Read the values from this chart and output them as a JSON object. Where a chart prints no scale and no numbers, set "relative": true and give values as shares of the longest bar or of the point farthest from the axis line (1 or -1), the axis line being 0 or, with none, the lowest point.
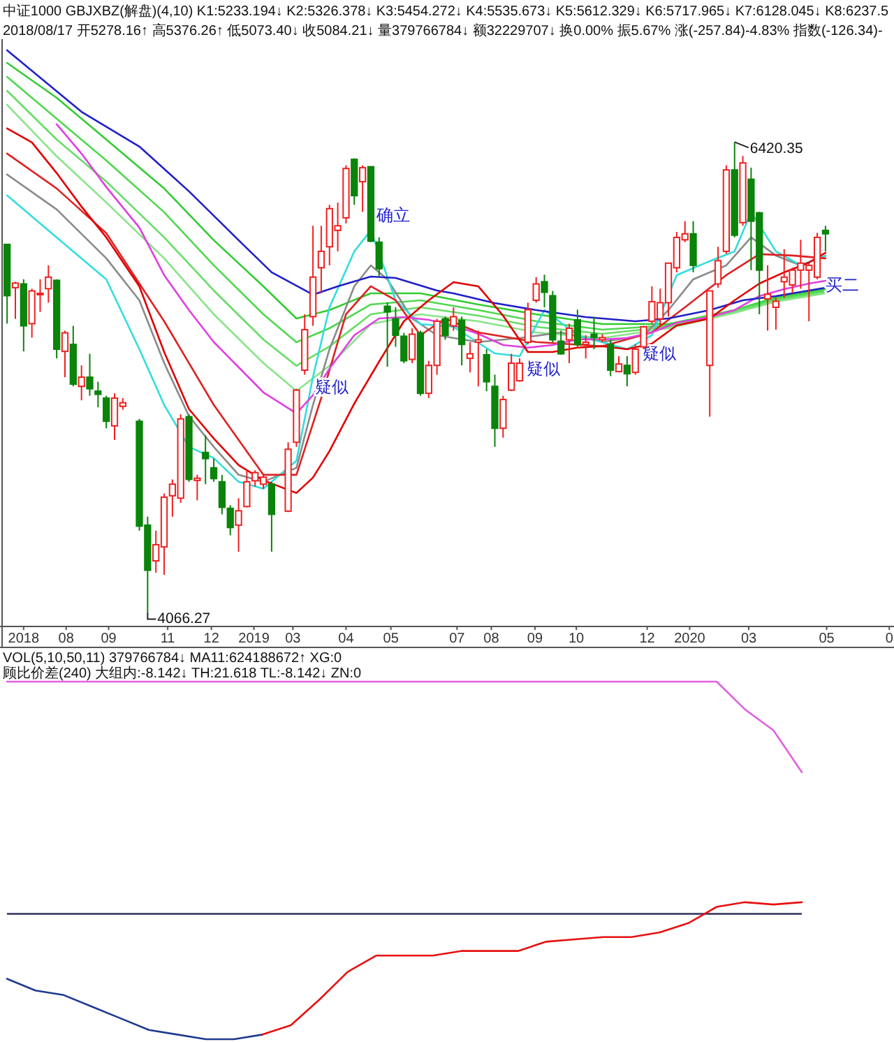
{
  "chart_data": [
    {
      "type": "candlestick",
      "annotations": [
        "中证1000 GBJXBZ(解盘)(4,10) K1:5233.194↓ K2:5326.378↓ K3:5454.272↓ K4:5535.673↓ K5:5612.329↓ K6:5717.965↓ K7:6128.045↓ K8:6237.5",
        "2018/08/17 开5278.16↑ 高5376.26↑ 低5073.40↓ 收5084.21↓ 量379766784↓ 额32229707↓ 换0.00% 振5.67% 涨(-257.84)-4.83% 指数(-126.34)-",
        {
          "text": "6420.35",
          "x": "2020-02-28",
          "y": 6420.35
        },
        {
          "text": "4066.27",
          "x": "2018-10-19",
          "y": 4066.27
        },
        {
          "text": "疑似",
          "x": "2019-03-10",
          "y": 5201
        },
        {
          "text": "疑似",
          "x": "2019-09-05",
          "y": 5293
        },
        {
          "text": "疑似",
          "x": "2019-12-12",
          "y": 5370
        },
        {
          "text": "确立",
          "x": "2019-05-01",
          "y": 6060
        },
        {
          "text": "买二",
          "x": "2020-05-15",
          "y": 5712
        }
      ],
      "x": [
        "2018-06-22",
        "2018-06-29",
        "2018-07-06",
        "2018-07-13",
        "2018-07-20",
        "2018-07-27",
        "2018-08-03",
        "2018-08-10",
        "2018-08-17",
        "2018-08-24",
        "2018-08-31",
        "2018-09-07",
        "2018-09-14",
        "2018-09-21",
        "2018-09-28",
        "2018-10-12",
        "2018-10-19",
        "2018-10-26",
        "2018-11-02",
        "2018-11-09",
        "2018-11-16",
        "2018-11-23",
        "2018-11-30",
        "2018-12-07",
        "2018-12-14",
        "2018-12-21",
        "2018-12-28",
        "2019-01-04",
        "2019-01-11",
        "2019-01-18",
        "2019-01-25",
        "2019-02-01",
        "2019-02-15",
        "2019-02-22",
        "2019-03-01",
        "2019-03-08",
        "2019-03-15",
        "2019-03-22",
        "2019-03-29",
        "2019-04-05",
        "2019-04-12",
        "2019-04-19",
        "2019-04-26",
        "2019-05-03",
        "2019-05-10",
        "2019-05-17",
        "2019-05-24",
        "2019-05-31",
        "2019-06-07",
        "2019-06-14",
        "2019-06-21",
        "2019-06-28",
        "2019-07-05",
        "2019-07-12",
        "2019-07-19",
        "2019-07-26",
        "2019-08-02",
        "2019-08-09",
        "2019-08-16",
        "2019-08-23",
        "2019-08-30",
        "2019-09-06",
        "2019-09-13",
        "2019-09-20",
        "2019-09-27",
        "2019-10-04",
        "2019-10-11",
        "2019-10-18",
        "2019-10-25",
        "2019-11-01",
        "2019-11-08",
        "2019-11-15",
        "2019-11-22",
        "2019-11-29",
        "2019-12-06",
        "2019-12-13",
        "2019-12-20",
        "2019-12-27",
        "2020-01-03",
        "2020-01-10",
        "2020-01-17",
        "2020-01-24",
        "2020-02-07",
        "2020-02-14",
        "2020-02-21",
        "2020-02-28",
        "2020-03-06",
        "2020-03-13",
        "2020-03-20",
        "2020-03-27",
        "2020-04-03",
        "2020-04-10",
        "2020-04-17",
        "2020-04-24",
        "2020-05-01",
        "2020-05-08",
        "2020-05-15"
      ],
      "ohlc": [
        [
          5908,
          5908,
          5511,
          5651
        ],
        [
          5691,
          5721,
          5535,
          5714
        ],
        [
          5710,
          5733,
          5372,
          5500
        ],
        [
          5511,
          5686,
          5441,
          5675
        ],
        [
          5656,
          5733,
          5570,
          5663
        ],
        [
          5686,
          5803,
          5616,
          5744
        ],
        [
          5728,
          5733,
          5337,
          5383
        ],
        [
          5372,
          5476,
          5243,
          5465
        ],
        [
          5407,
          5500,
          5197,
          5208
        ],
        [
          5197,
          5302,
          5127,
          5243
        ],
        [
          5243,
          5360,
          5150,
          5185
        ],
        [
          5173,
          5220,
          5092,
          5157
        ],
        [
          5138,
          5150,
          4987,
          5022
        ],
        [
          4999,
          5162,
          4929,
          5138
        ],
        [
          5097,
          5138,
          5080,
          5115
        ],
        [
          5022,
          5034,
          4474,
          4497
        ],
        [
          4502,
          4544,
          4066.27,
          4276
        ],
        [
          4323,
          4474,
          4264,
          4404
        ],
        [
          4393,
          4660,
          4253,
          4642
        ],
        [
          4649,
          4731,
          4544,
          4707
        ],
        [
          4637,
          5057,
          4614,
          5034
        ],
        [
          5045,
          5057,
          4719,
          4731
        ],
        [
          4726,
          4754,
          4626,
          4737
        ],
        [
          4866,
          4952,
          4707,
          4835
        ],
        [
          4789,
          4835,
          4719,
          4735
        ],
        [
          4719,
          4754,
          4556,
          4591
        ],
        [
          4586,
          4602,
          4451,
          4490
        ],
        [
          4502,
          4637,
          4369,
          4574
        ],
        [
          4595,
          4782,
          4591,
          4719
        ],
        [
          4724,
          4777,
          4696,
          4765
        ],
        [
          4707,
          4754,
          4684,
          4742
        ],
        [
          4707,
          4719,
          4369,
          4556
        ],
        [
          4572,
          4917,
          4567,
          4882
        ],
        [
          4917,
          5185,
          4894,
          5178
        ],
        [
          5278,
          5558,
          5255,
          5481
        ],
        [
          5546,
          6001,
          5500,
          5744
        ],
        [
          5791,
          6001,
          5663,
          5873
        ],
        [
          5896,
          6106,
          5803,
          6087
        ],
        [
          5978,
          6117,
          5873,
          6001
        ],
        [
          6041,
          6304,
          6013,
          6288
        ],
        [
          6334,
          6339,
          6106,
          6152
        ],
        [
          6222,
          6304,
          6071,
          6292
        ],
        [
          6297,
          6297,
          5919,
          5924
        ],
        [
          5919,
          5943,
          5744,
          5786
        ],
        [
          5598,
          5616,
          5295,
          5570
        ],
        [
          5535,
          5593,
          5395,
          5453
        ],
        [
          5448,
          5465,
          5313,
          5325
        ],
        [
          5332,
          5488,
          5313,
          5458
        ],
        [
          5465,
          5476,
          5150,
          5162
        ],
        [
          5162,
          5325,
          5138,
          5302
        ],
        [
          5302,
          5535,
          5255,
          5523
        ],
        [
          5535,
          5546,
          5430,
          5453
        ],
        [
          5500,
          5593,
          5476,
          5546
        ],
        [
          5528,
          5546,
          5302,
          5407
        ],
        [
          5337,
          5418,
          5267,
          5360
        ],
        [
          5418,
          5476,
          5197,
          5430
        ],
        [
          5355,
          5383,
          5173,
          5220
        ],
        [
          5197,
          5255,
          4894,
          4987
        ],
        [
          4987,
          5150,
          4940,
          5131
        ],
        [
          5178,
          5360,
          5173,
          5313
        ],
        [
          5225,
          5337,
          5220,
          5313
        ],
        [
          5418,
          5616,
          5407,
          5581
        ],
        [
          5628,
          5744,
          5616,
          5710
        ],
        [
          5721,
          5756,
          5593,
          5668
        ],
        [
          5651,
          5675,
          5418,
          5430
        ],
        [
          5423,
          5476,
          5355,
          5360
        ],
        [
          5430,
          5511,
          5313,
          5488
        ],
        [
          5530,
          5581,
          5395,
          5407
        ],
        [
          5407,
          5453,
          5337,
          5418
        ],
        [
          5458,
          5546,
          5383,
          5441
        ],
        [
          5430,
          5458,
          5418,
          5441
        ],
        [
          5407,
          5430,
          5248,
          5278
        ],
        [
          5271,
          5348,
          5267,
          5309
        ],
        [
          5302,
          5348,
          5197,
          5260
        ],
        [
          5267,
          5407,
          5255,
          5383
        ],
        [
          5395,
          5500,
          5383,
          5495
        ],
        [
          5523,
          5698,
          5511,
          5621
        ],
        [
          5535,
          5686,
          5500,
          5616
        ],
        [
          5616,
          5814,
          5546,
          5814
        ],
        [
          5791,
          5970,
          5768,
          5943
        ],
        [
          5931,
          6024,
          5919,
          5961
        ],
        [
          5961,
          6024,
          5768,
          5803
        ],
        [
          5302,
          5675,
          5045,
          5675
        ],
        [
          5710,
          5896,
          5691,
          5826
        ],
        [
          5873,
          6304,
          5861,
          6281
        ],
        [
          6281,
          6420.35,
          5943,
          5954
        ],
        [
          6017,
          6351,
          6001,
          6316
        ],
        [
          6234,
          6292,
          5779,
          6024
        ],
        [
          6066,
          6071,
          5558,
          5779
        ],
        [
          5635,
          5803,
          5476,
          5658
        ],
        [
          5593,
          5640,
          5481,
          5623
        ],
        [
          5721,
          5884,
          5640,
          5744
        ],
        [
          5705,
          5791,
          5663,
          5779
        ],
        [
          5779,
          5931,
          5686,
          5814
        ],
        [
          5779,
          5814,
          5523,
          5803
        ],
        [
          5744,
          5966,
          5733,
          5943
        ],
        [
          5978,
          6001,
          5873,
          5961
        ]
      ],
      "series": [
        {
          "type": "line",
          "color": "#33cc33",
          "x": [
            "2018-06-22",
            "2018-08-03",
            "2018-09-14",
            "2018-11-02",
            "2018-12-14",
            "2019-01-25",
            "2019-02-22",
            "2019-03-22",
            "2019-04-26",
            "2019-06-07",
            "2019-07-26",
            "2019-09-13",
            "2019-11-08",
            "2020-01-03",
            "2020-02-28",
            "2020-04-03",
            "2020-05-15"
          ],
          "values": [
            6817,
            6642,
            6433,
            6188,
            5929,
            5698,
            5537,
            5579,
            5663,
            5663,
            5607,
            5558,
            5509,
            5509,
            5579,
            5642,
            5684
          ]
        },
        {
          "type": "line",
          "color": "#4fd84f",
          "x": [
            "2018-06-22",
            "2018-08-03",
            "2018-09-14",
            "2018-11-02",
            "2018-12-14",
            "2019-01-25",
            "2019-02-22",
            "2019-03-22",
            "2019-04-26",
            "2019-06-07",
            "2019-07-26",
            "2019-09-13",
            "2019-11-08",
            "2020-01-03",
            "2020-02-28",
            "2020-04-03",
            "2020-05-15"
          ],
          "values": [
            6747,
            6537,
            6328,
            6069,
            5803,
            5558,
            5418,
            5488,
            5607,
            5628,
            5579,
            5523,
            5481,
            5502,
            5579,
            5635,
            5677
          ]
        },
        {
          "type": "line",
          "color": "#66dd66",
          "x": [
            "2018-06-22",
            "2018-08-03",
            "2018-09-14",
            "2018-11-02",
            "2018-12-14",
            "2019-01-25",
            "2019-02-22",
            "2019-03-22",
            "2019-04-26",
            "2019-06-07",
            "2019-07-26",
            "2019-09-13",
            "2019-11-08",
            "2020-01-03",
            "2020-02-28",
            "2020-04-03",
            "2020-05-15"
          ],
          "values": [
            6677,
            6433,
            6223,
            5943,
            5677,
            5432,
            5300,
            5397,
            5558,
            5593,
            5551,
            5495,
            5460,
            5495,
            5572,
            5628,
            5670
          ]
        },
        {
          "type": "line",
          "color": "#88e488",
          "x": [
            "2018-06-22",
            "2018-08-03",
            "2018-09-14",
            "2018-11-02",
            "2018-12-14",
            "2019-01-25",
            "2019-02-22",
            "2019-03-22",
            "2019-04-26",
            "2019-06-07",
            "2019-07-26",
            "2019-09-13",
            "2019-11-08",
            "2020-01-03",
            "2020-02-28",
            "2020-04-03",
            "2020-05-15"
          ],
          "values": [
            6607,
            6349,
            6118,
            5838,
            5558,
            5314,
            5174,
            5300,
            5509,
            5558,
            5523,
            5467,
            5439,
            5488,
            5565,
            5621,
            5663
          ]
        },
        {
          "type": "line",
          "color": "#8a8a8a",
          "x": [
            "2018-06-22",
            "2018-08-03",
            "2018-09-14",
            "2018-10-12",
            "2018-11-02",
            "2018-11-23",
            "2018-12-14",
            "2019-01-04",
            "2019-01-25",
            "2019-02-22",
            "2019-03-08",
            "2019-03-22",
            "2019-04-12",
            "2019-04-26",
            "2019-05-10",
            "2019-05-31",
            "2019-06-21",
            "2019-07-26",
            "2019-08-30",
            "2019-10-04",
            "2019-11-08",
            "2019-12-13",
            "2020-01-03",
            "2020-01-24",
            "2020-02-21",
            "2020-03-13",
            "2020-04-03",
            "2020-04-24",
            "2020-05-15"
          ],
          "values": [
            6258,
            6083,
            5838,
            5628,
            5314,
            5048,
            4894,
            4754,
            4719,
            4789,
            5104,
            5383,
            5698,
            5803,
            5733,
            5537,
            5453,
            5419,
            5439,
            5467,
            5419,
            5453,
            5579,
            5733,
            5803,
            5943,
            5852,
            5803,
            5852
          ]
        },
        {
          "type": "line",
          "color": "#33dddd",
          "x": [
            "2018-06-22",
            "2018-08-03",
            "2018-09-14",
            "2018-10-12",
            "2018-11-02",
            "2018-11-23",
            "2018-12-14",
            "2019-01-04",
            "2019-01-25",
            "2019-02-22",
            "2019-03-08",
            "2019-03-22",
            "2019-04-12",
            "2019-04-26",
            "2019-05-17",
            "2019-06-07",
            "2019-07-05",
            "2019-08-09",
            "2019-08-30",
            "2019-09-20",
            "2019-10-18",
            "2019-11-29",
            "2019-12-20",
            "2020-01-10",
            "2020-02-07",
            "2020-02-28",
            "2020-03-13",
            "2020-04-03",
            "2020-04-24",
            "2020-05-15"
          ],
          "values": [
            6153,
            5943,
            5733,
            5383,
            5104,
            4894,
            4838,
            4719,
            4684,
            4824,
            5244,
            5593,
            5873,
            5978,
            5628,
            5509,
            5495,
            5362,
            5348,
            5579,
            5453,
            5383,
            5453,
            5754,
            5824,
            5873,
            6069,
            5873,
            5803,
            5852
          ]
        },
        {
          "type": "line",
          "color": "#dd2222",
          "x": [
            "2018-06-22",
            "2018-08-03",
            "2018-09-14",
            "2018-11-02",
            "2018-12-14",
            "2019-01-25",
            "2019-02-22",
            "2019-03-15",
            "2019-04-05",
            "2019-04-26",
            "2019-05-17",
            "2019-06-07",
            "2019-06-28",
            "2019-07-26",
            "2019-09-13",
            "2019-11-08",
            "2019-12-20",
            "2020-01-17",
            "2020-02-21",
            "2020-03-20",
            "2020-04-17",
            "2020-05-15"
          ],
          "values": [
            6363,
            6188,
            5964,
            5523,
            5104,
            4754,
            4754,
            5139,
            5558,
            5698,
            5628,
            5453,
            5537,
            5467,
            5419,
            5398,
            5467,
            5593,
            5754,
            5859,
            5852,
            5838
          ]
        },
        {
          "type": "line",
          "color": "#e040e0",
          "x": [
            "2018-08-03",
            "2018-08-24",
            "2018-09-14",
            "2018-10-12",
            "2018-11-02",
            "2018-11-23",
            "2018-12-14",
            "2019-01-04",
            "2019-01-25",
            "2019-02-22",
            "2019-03-08",
            "2019-03-22",
            "2019-04-12",
            "2019-05-03",
            "2019-05-24",
            "2019-06-14",
            "2019-07-05",
            "2019-07-26",
            "2019-08-16",
            "2019-09-06",
            "2019-09-27",
            "2019-10-18",
            "2019-11-08",
            "2019-11-29",
            "2019-12-20",
            "2020-01-10",
            "2020-02-07",
            "2020-02-28",
            "2020-03-20",
            "2020-04-10",
            "2020-05-01",
            "2020-05-15"
          ],
          "values": [
            6510,
            6363,
            6195,
            5992,
            5754,
            5579,
            5419,
            5293,
            5167,
            5062,
            5153,
            5286,
            5453,
            5537,
            5544,
            5530,
            5502,
            5460,
            5404,
            5391,
            5404,
            5432,
            5432,
            5439,
            5467,
            5516,
            5544,
            5579,
            5649,
            5684,
            5712,
            5726
          ]
        },
        {
          "type": "line",
          "color": "#2020c8",
          "x": [
            "2018-06-22",
            "2018-08-24",
            "2018-10-12",
            "2018-11-23",
            "2019-01-04",
            "2019-02-01",
            "2019-03-08",
            "2019-03-29",
            "2019-04-26",
            "2019-05-17",
            "2019-06-21",
            "2019-07-05",
            "2019-08-09",
            "2019-09-13",
            "2019-10-25",
            "2019-12-06",
            "2020-01-03",
            "2020-02-07",
            "2020-03-06",
            "2020-04-03",
            "2020-05-15"
          ],
          "values": [
            6880,
            6572,
            6398,
            6174,
            5929,
            5768,
            5656,
            5698,
            5747,
            5740,
            5677,
            5663,
            5614,
            5579,
            5544,
            5523,
            5537,
            5579,
            5628,
            5649,
            5691
          ]
        },
        {
          "type": "line",
          "color": "#e00000",
          "x": [
            "2018-06-22",
            "2018-07-13",
            "2018-08-03",
            "2018-08-24",
            "2018-09-14",
            "2018-10-12",
            "2018-11-02",
            "2018-11-23",
            "2018-12-14",
            "2019-01-04",
            "2019-01-25",
            "2019-02-22",
            "2019-03-08",
            "2019-03-22",
            "2019-04-12",
            "2019-05-03",
            "2019-05-24",
            "2019-06-14",
            "2019-07-05",
            "2019-07-26",
            "2019-08-16",
            "2019-09-06",
            "2019-09-27",
            "2019-10-18",
            "2019-11-08",
            "2019-11-29",
            "2019-12-20",
            "2020-01-10",
            "2020-02-07",
            "2020-02-28",
            "2020-03-20",
            "2020-04-10",
            "2020-05-01",
            "2020-05-15"
          ],
          "values": [
            6489,
            6419,
            6265,
            6097,
            5943,
            5698,
            5369,
            5083,
            4936,
            4803,
            4726,
            4663,
            4740,
            4873,
            5111,
            5321,
            5523,
            5628,
            5719,
            5698,
            5551,
            5369,
            5369,
            5391,
            5398,
            5383,
            5411,
            5502,
            5537,
            5628,
            5712,
            5768,
            5817,
            5866
          ]
        }
      ],
      "xlim": [
        "2018-06-16",
        "2020-07-12"
      ],
      "xticks": [
        {
          "value": "2018-07-06",
          "label": "2018"
        },
        {
          "value": "2018-08-11",
          "label": "08"
        },
        {
          "value": "2018-09-16",
          "label": "09"
        },
        {
          "value": "2018-11-05",
          "label": "11"
        },
        {
          "value": "2018-12-12",
          "label": "12"
        },
        {
          "value": "2019-01-17",
          "label": "2019"
        },
        {
          "value": "2019-02-19",
          "label": "03"
        },
        {
          "value": "2019-04-05",
          "label": "04"
        },
        {
          "value": "2019-05-13",
          "label": "05"
        },
        {
          "value": "2019-07-08",
          "label": "07"
        },
        {
          "value": "2019-08-06",
          "label": "08"
        },
        {
          "value": "2019-09-12",
          "label": "09"
        },
        {
          "value": "2019-10-17",
          "label": "10"
        },
        {
          "value": "2019-12-16",
          "label": "12"
        },
        {
          "value": "2020-01-21",
          "label": "2020"
        },
        {
          "value": "2020-03-11",
          "label": "03"
        },
        {
          "value": "2020-05-16",
          "label": "05"
        },
        {
          "value": "2020-07-08",
          "label": "0"
        }
      ],
      "ylim": [
        3998,
        6922
      ],
      "tick_labels": "x"
    },
    {
      "type": "line",
      "relative": true,
      "annotations": [
        "VOL(5,10,50,11) 379766784↓ MA11:624188672↑ XG:0",
        "顾比价差(240) 大组内:-8.142↓ TH:21.618 TL:-8.142↓ ZN:0"
      ],
      "series": [
        {
          "type": "line",
          "color": "#e060e0",
          "values": [
            1,
            1,
            1,
            1,
            1,
            1,
            1,
            1,
            1,
            1,
            1,
            1,
            1,
            1,
            1,
            1,
            1,
            1,
            1,
            1,
            1,
            1,
            1,
            1,
            1,
            1,
            0.88,
            0.79,
            0.61,
            null,
            null,
            null
          ]
        },
        {
          "type": "line",
          "color": "#1f3a8f",
          "values": [
            -0.28,
            -0.33,
            -0.35,
            -0.4,
            -0.45,
            -0.5,
            -0.52,
            -0.54,
            -0.54,
            -0.52,
            null,
            null,
            null,
            null,
            null,
            null,
            null,
            null,
            null,
            null,
            null,
            null,
            null,
            null,
            null,
            null,
            null,
            null,
            null,
            null,
            null,
            null
          ]
        },
        {
          "type": "line",
          "color": "#e81010",
          "values": [
            null,
            null,
            null,
            null,
            null,
            null,
            null,
            null,
            null,
            -0.52,
            -0.48,
            -0.37,
            -0.25,
            -0.18,
            -0.18,
            -0.18,
            -0.16,
            -0.16,
            -0.16,
            -0.12,
            -0.11,
            -0.1,
            -0.1,
            -0.08,
            -0.04,
            0.03,
            0.05,
            0.04,
            0.05,
            null,
            null,
            null
          ]
        }
      ],
      "categories": [
        null,
        null,
        null,
        null,
        null,
        null,
        null,
        null,
        null,
        null,
        null,
        null,
        null,
        null,
        null,
        null,
        null,
        null,
        null,
        null,
        null,
        null,
        null,
        null,
        null,
        null,
        null,
        null,
        null,
        null,
        null,
        null
      ],
      "tick_labels": false
    }
  ]
}
